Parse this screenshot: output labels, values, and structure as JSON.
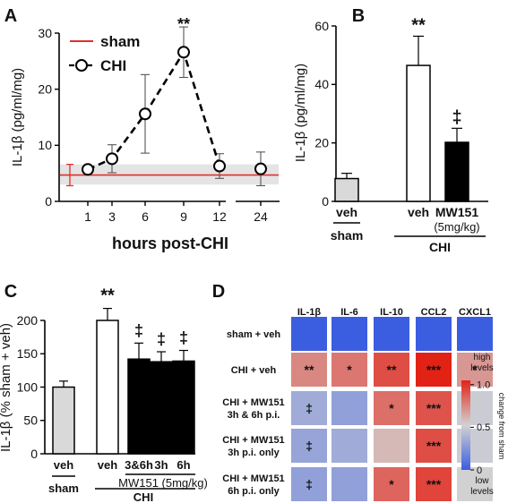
{
  "panels": {
    "A": "A",
    "B": "B",
    "C": "C",
    "D": "D"
  },
  "chart_data": [
    {
      "panel": "A",
      "type": "line",
      "ylabel": "IL-1β (pg/ml/mg)",
      "xlabel": "hours post-CHI",
      "ylim": [
        0,
        30
      ],
      "yticks": [
        0,
        10,
        20,
        30
      ],
      "x_ticks": [
        "1",
        "3",
        "6",
        "9",
        "12",
        "24"
      ],
      "series": [
        {
          "name": "CHI",
          "x": [
            1,
            3,
            6,
            9,
            12,
            24
          ],
          "values": [
            5.7,
            7.6,
            15.6,
            26.6,
            6.3,
            5.8
          ],
          "err": [
            0.5,
            2.5,
            7.0,
            4.5,
            2.2,
            3.0
          ],
          "style": "dashed-open-circles",
          "color": "#000000"
        },
        {
          "name": "sham",
          "value": 4.7,
          "err": 1.9,
          "band": [
            3.0,
            6.6
          ],
          "color": "#e0302a"
        }
      ],
      "legend": [
        "sham",
        "CHI"
      ],
      "annotations": [
        {
          "text": "**",
          "at": 9
        }
      ]
    },
    {
      "panel": "B",
      "type": "bar",
      "ylabel": "IL-1β (pg/ml/mg)",
      "ylim": [
        0,
        60
      ],
      "yticks": [
        0,
        20,
        40,
        60
      ],
      "categories": [
        "veh",
        "veh",
        "MW151"
      ],
      "sub_labels": [
        "",
        "",
        "(5mg/kg)"
      ],
      "values": [
        7.8,
        46.5,
        20.2
      ],
      "err": [
        1.8,
        10.0,
        4.8
      ],
      "fills": [
        "#d9d9d9",
        "#ffffff",
        "#000000"
      ],
      "annotations": [
        "",
        "**",
        "‡"
      ],
      "groups": [
        {
          "label": "sham",
          "cats": [
            0
          ]
        },
        {
          "label": "CHI",
          "cats": [
            1,
            2
          ]
        }
      ]
    },
    {
      "panel": "C",
      "type": "bar",
      "ylabel": "IL-1β (% sham + veh)",
      "ylim": [
        0,
        200
      ],
      "yticks": [
        0,
        50,
        100,
        150,
        200
      ],
      "categories": [
        "veh",
        "veh",
        "3&6h",
        "3h",
        "6h"
      ],
      "values": [
        100,
        200,
        142,
        138,
        139
      ],
      "err": [
        9,
        18,
        24,
        15,
        16
      ],
      "fills": [
        "#d9d9d9",
        "#ffffff",
        "#000000",
        "#000000",
        "#000000"
      ],
      "annotations": [
        "",
        "**",
        "‡",
        "‡",
        "‡"
      ],
      "treatment_label": "MW151 (5mg/kg)",
      "groups": [
        {
          "label": "sham",
          "cats": [
            0
          ]
        },
        {
          "label": "CHI",
          "cats": [
            1,
            2,
            3,
            4
          ]
        }
      ]
    },
    {
      "panel": "D",
      "type": "heatmap",
      "columns": [
        "IL-1β",
        "IL-6",
        "IL-10",
        "CCL2",
        "CXCL1"
      ],
      "rows": [
        {
          "label": [
            "sham + veh"
          ],
          "values": [
            0.0,
            0.0,
            0.0,
            0.0,
            0.0
          ],
          "marks": [
            "",
            "",
            "",
            "",
            ""
          ]
        },
        {
          "label": [
            "CHI + veh"
          ],
          "values": [
            0.75,
            0.8,
            0.92,
            1.05,
            0.7
          ],
          "marks": [
            "**",
            "*",
            "**",
            "***",
            "*"
          ]
        },
        {
          "label": [
            "CHI + MW151",
            "3h & 6h p.i."
          ],
          "values": [
            0.35,
            0.3,
            0.82,
            0.9,
            0.5
          ],
          "marks": [
            "‡",
            "",
            "*",
            "***",
            ""
          ]
        },
        {
          "label": [
            "CHI + MW151",
            "3h p.i. only"
          ],
          "values": [
            0.32,
            0.35,
            0.6,
            0.92,
            0.5
          ],
          "marks": [
            "‡",
            "",
            "",
            "***",
            ""
          ]
        },
        {
          "label": [
            "CHI + MW151",
            "6h p.i. only"
          ],
          "values": [
            0.3,
            0.3,
            0.85,
            0.95,
            0.52
          ],
          "marks": [
            "‡",
            "",
            "*",
            "***",
            ""
          ]
        }
      ],
      "colorbar": {
        "label": "change from sham",
        "ticks": [
          0,
          0.5,
          1.0
        ],
        "tick_labels": [
          "0",
          "0.5",
          "1.0"
        ],
        "high_label": [
          "high",
          "levels"
        ],
        "low_label": [
          "low",
          "levels"
        ],
        "colors": [
          "#3b5de0",
          "#d2d2d2",
          "#e32216"
        ]
      }
    }
  ]
}
